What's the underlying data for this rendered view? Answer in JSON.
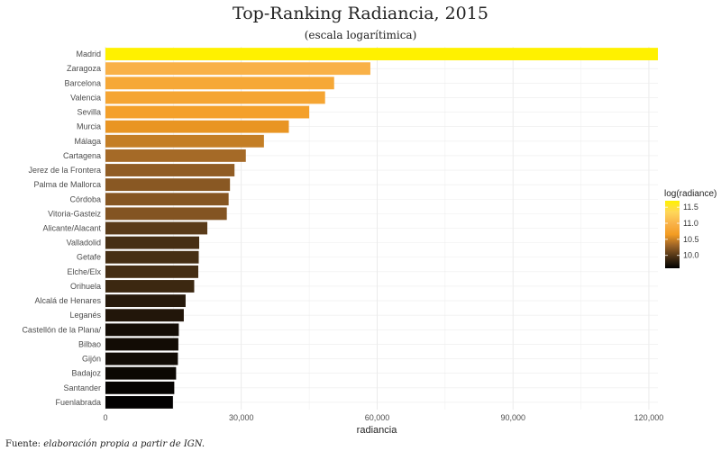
{
  "chart_data": {
    "type": "bar",
    "orientation": "horizontal",
    "title": "Top-Ranking Radiancia, 2015",
    "subtitle": "(escala logarítimica)",
    "xlabel": "radiancia",
    "ylabel": "",
    "caption_prefix": "Fuente: ",
    "caption_text": "elaboración propia a partir de IGN.",
    "xlim": [
      0,
      122000
    ],
    "xticks": [
      0,
      30000,
      60000,
      90000,
      120000
    ],
    "xtick_labels": [
      "0",
      "30,000",
      "60,000",
      "90,000",
      "120,000"
    ],
    "grid": true,
    "categories": [
      "Madrid",
      "Zaragoza",
      "Barcelona",
      "Valencia",
      "Sevilla",
      "Murcia",
      "Málaga",
      "Cartagena",
      "Jerez de la Frontera",
      "Palma de Mallorca",
      "Córdoba",
      "Vitoria-Gasteiz",
      "Alicante/Alacant",
      "Valladolid",
      "Getafe",
      "Elche/Elx",
      "Orihuela",
      "Alcalá de Henares",
      "Leganés",
      "Castellón de la Plana/",
      "Bilbao",
      "Gijón",
      "Badajoz",
      "Santander",
      "Fuenlabrada"
    ],
    "values": [
      122000,
      58500,
      50500,
      48500,
      45000,
      40500,
      35000,
      31000,
      28500,
      27500,
      27200,
      26800,
      22500,
      20700,
      20600,
      20500,
      19600,
      17700,
      17300,
      16200,
      16100,
      16000,
      15600,
      15200,
      14900
    ],
    "legend": {
      "title": "log(radiance)",
      "position": "right",
      "ticks": [
        10.0,
        10.5,
        11.0,
        11.5
      ],
      "tick_labels": [
        "10.0",
        "10.5",
        "11.0",
        "11.5"
      ],
      "range": [
        9.6,
        11.7
      ],
      "colors": [
        "#000000",
        "#4a3115",
        "#9b6327",
        "#f39c23",
        "#f9b34a",
        "#ffd75a",
        "#fff100"
      ]
    }
  }
}
